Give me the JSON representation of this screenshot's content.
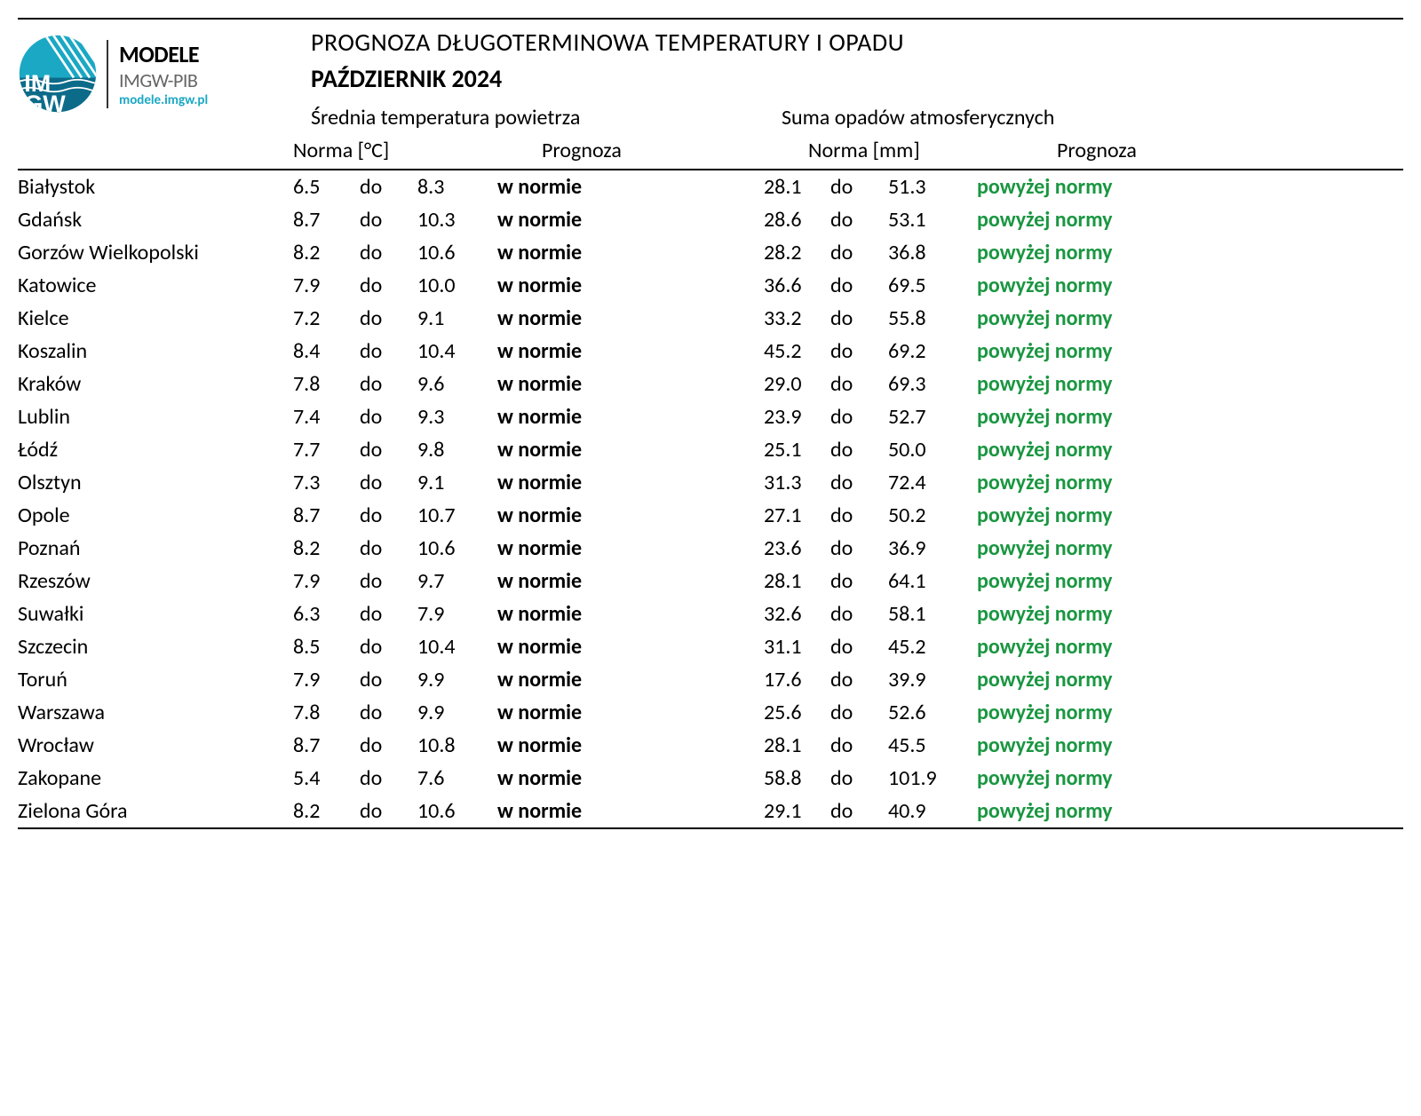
{
  "logo": {
    "line1": "MODELE",
    "line2": "IMGW-PIB",
    "line3": "modele.imgw.pl"
  },
  "titles": {
    "main": "PROGNOZA DŁUGOTERMINOWA TEMPERATURY I OPADU",
    "month": "PAŹDZIERNIK 2024",
    "temp_section": "Średnia temperatura powietrza",
    "precip_section": "Suma opadów atmosferycznych",
    "norma_temp": "Norma [°C]",
    "norma_precip": "Norma [mm]",
    "prognoza": "Prognoza",
    "do": "do"
  },
  "colors": {
    "green": "#1a9641",
    "black": "#000000",
    "logo_teal": "#1ba8c4"
  },
  "rows": [
    {
      "city": "Białystok",
      "t_low": "6.5",
      "t_high": "8.3",
      "t_prog": "w normie",
      "t_color": "black",
      "p_low": "28.1",
      "p_high": "51.3",
      "p_prog": "powyżej normy",
      "p_color": "green"
    },
    {
      "city": "Gdańsk",
      "t_low": "8.7",
      "t_high": "10.3",
      "t_prog": "w normie",
      "t_color": "black",
      "p_low": "28.6",
      "p_high": "53.1",
      "p_prog": "powyżej normy",
      "p_color": "green"
    },
    {
      "city": "Gorzów Wielkopolski",
      "t_low": "8.2",
      "t_high": "10.6",
      "t_prog": "w normie",
      "t_color": "black",
      "p_low": "28.2",
      "p_high": "36.8",
      "p_prog": "powyżej normy",
      "p_color": "green"
    },
    {
      "city": "Katowice",
      "t_low": "7.9",
      "t_high": "10.0",
      "t_prog": "w normie",
      "t_color": "black",
      "p_low": "36.6",
      "p_high": "69.5",
      "p_prog": "powyżej normy",
      "p_color": "green"
    },
    {
      "city": "Kielce",
      "t_low": "7.2",
      "t_high": "9.1",
      "t_prog": "w normie",
      "t_color": "black",
      "p_low": "33.2",
      "p_high": "55.8",
      "p_prog": "powyżej normy",
      "p_color": "green"
    },
    {
      "city": "Koszalin",
      "t_low": "8.4",
      "t_high": "10.4",
      "t_prog": "w normie",
      "t_color": "black",
      "p_low": "45.2",
      "p_high": "69.2",
      "p_prog": "powyżej normy",
      "p_color": "green"
    },
    {
      "city": "Kraków",
      "t_low": "7.8",
      "t_high": "9.6",
      "t_prog": "w normie",
      "t_color": "black",
      "p_low": "29.0",
      "p_high": "69.3",
      "p_prog": "powyżej normy",
      "p_color": "green"
    },
    {
      "city": "Lublin",
      "t_low": "7.4",
      "t_high": "9.3",
      "t_prog": "w normie",
      "t_color": "black",
      "p_low": "23.9",
      "p_high": "52.7",
      "p_prog": "powyżej normy",
      "p_color": "green"
    },
    {
      "city": "Łódź",
      "t_low": "7.7",
      "t_high": "9.8",
      "t_prog": "w normie",
      "t_color": "black",
      "p_low": "25.1",
      "p_high": "50.0",
      "p_prog": "powyżej normy",
      "p_color": "green"
    },
    {
      "city": "Olsztyn",
      "t_low": "7.3",
      "t_high": "9.1",
      "t_prog": "w normie",
      "t_color": "black",
      "p_low": "31.3",
      "p_high": "72.4",
      "p_prog": "powyżej normy",
      "p_color": "green"
    },
    {
      "city": "Opole",
      "t_low": "8.7",
      "t_high": "10.7",
      "t_prog": "w normie",
      "t_color": "black",
      "p_low": "27.1",
      "p_high": "50.2",
      "p_prog": "powyżej normy",
      "p_color": "green"
    },
    {
      "city": "Poznań",
      "t_low": "8.2",
      "t_high": "10.6",
      "t_prog": "w normie",
      "t_color": "black",
      "p_low": "23.6",
      "p_high": "36.9",
      "p_prog": "powyżej normy",
      "p_color": "green"
    },
    {
      "city": "Rzeszów",
      "t_low": "7.9",
      "t_high": "9.7",
      "t_prog": "w normie",
      "t_color": "black",
      "p_low": "28.1",
      "p_high": "64.1",
      "p_prog": "powyżej normy",
      "p_color": "green"
    },
    {
      "city": "Suwałki",
      "t_low": "6.3",
      "t_high": "7.9",
      "t_prog": "w normie",
      "t_color": "black",
      "p_low": "32.6",
      "p_high": "58.1",
      "p_prog": "powyżej normy",
      "p_color": "green"
    },
    {
      "city": "Szczecin",
      "t_low": "8.5",
      "t_high": "10.4",
      "t_prog": "w normie",
      "t_color": "black",
      "p_low": "31.1",
      "p_high": "45.2",
      "p_prog": "powyżej normy",
      "p_color": "green"
    },
    {
      "city": "Toruń",
      "t_low": "7.9",
      "t_high": "9.9",
      "t_prog": "w normie",
      "t_color": "black",
      "p_low": "17.6",
      "p_high": "39.9",
      "p_prog": "powyżej normy",
      "p_color": "green"
    },
    {
      "city": "Warszawa",
      "t_low": "7.8",
      "t_high": "9.9",
      "t_prog": "w normie",
      "t_color": "black",
      "p_low": "25.6",
      "p_high": "52.6",
      "p_prog": "powyżej normy",
      "p_color": "green"
    },
    {
      "city": "Wrocław",
      "t_low": "8.7",
      "t_high": "10.8",
      "t_prog": "w normie",
      "t_color": "black",
      "p_low": "28.1",
      "p_high": "45.5",
      "p_prog": "powyżej normy",
      "p_color": "green"
    },
    {
      "city": "Zakopane",
      "t_low": "5.4",
      "t_high": "7.6",
      "t_prog": "w normie",
      "t_color": "black",
      "p_low": "58.8",
      "p_high": "101.9",
      "p_prog": "powyżej normy",
      "p_color": "green"
    },
    {
      "city": "Zielona Góra",
      "t_low": "8.2",
      "t_high": "10.6",
      "t_prog": "w normie",
      "t_color": "black",
      "p_low": "29.1",
      "p_high": "40.9",
      "p_prog": "powyżej normy",
      "p_color": "green"
    }
  ]
}
